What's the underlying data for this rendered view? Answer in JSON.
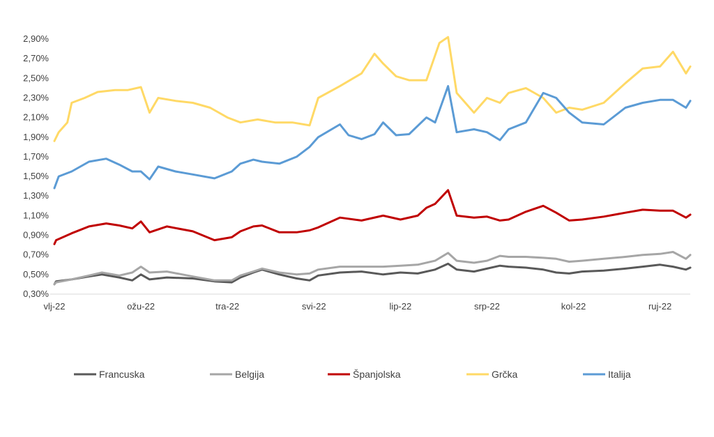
{
  "chart_data": {
    "type": "line",
    "title": "",
    "xlabel": "",
    "ylabel": "",
    "ylim": [
      0.3,
      2.9
    ],
    "y_unit": "%",
    "grid": false,
    "legend_position": "bottom",
    "x_ticks": [
      "vlj-22",
      "ožu-22",
      "tra-22",
      "svi-22",
      "lip-22",
      "srp-22",
      "kol-22",
      "ruj-22"
    ],
    "y_ticks": [
      "0,30%",
      "0,50%",
      "0,70%",
      "0,90%",
      "1,10%",
      "1,30%",
      "1,50%",
      "1,70%",
      "1,90%",
      "2,10%",
      "2,30%",
      "2,50%",
      "2,70%",
      "2,90%"
    ],
    "x": [
      "vlj-22",
      "vlj-22",
      "ožu-22",
      "ožu-22",
      "ožu-22",
      "ožu-22",
      "tra-22",
      "tra-22",
      "tra-22",
      "tra-22",
      "svi-22",
      "svi-22",
      "svi-22",
      "svi-22",
      "lip-22",
      "lip-22",
      "lip-22",
      "lip-22",
      "srp-22",
      "srp-22",
      "srp-22",
      "srp-22",
      "kol-22",
      "kol-22",
      "kol-22",
      "kol-22",
      "ruj-22",
      "ruj-22"
    ],
    "x_index": [
      0,
      0.1,
      0.2,
      0.4,
      0.6,
      0.8,
      1.0,
      1.2,
      1.4,
      1.6,
      1.8,
      2.0,
      2.2,
      2.4,
      2.6,
      2.8,
      3.0,
      3.2,
      3.4,
      3.6,
      3.8,
      4.0,
      4.2,
      4.4,
      4.6,
      4.8,
      5.0,
      5.2
    ],
    "series": [
      {
        "name": "Francuska",
        "color": "#595959",
        "points": [
          [
            0,
            0.4
          ],
          [
            0.02,
            0.43
          ],
          [
            0.2,
            0.45
          ],
          [
            0.4,
            0.48
          ],
          [
            0.55,
            0.5
          ],
          [
            0.75,
            0.47
          ],
          [
            0.9,
            0.44
          ],
          [
            1.0,
            0.5
          ],
          [
            1.1,
            0.45
          ],
          [
            1.3,
            0.47
          ],
          [
            1.6,
            0.46
          ],
          [
            1.85,
            0.43
          ],
          [
            2.05,
            0.42
          ],
          [
            2.15,
            0.47
          ],
          [
            2.3,
            0.52
          ],
          [
            2.4,
            0.55
          ],
          [
            2.6,
            0.5
          ],
          [
            2.8,
            0.46
          ],
          [
            2.95,
            0.44
          ],
          [
            3.05,
            0.49
          ],
          [
            3.3,
            0.52
          ],
          [
            3.55,
            0.53
          ],
          [
            3.8,
            0.5
          ],
          [
            4.0,
            0.52
          ],
          [
            4.2,
            0.51
          ],
          [
            4.4,
            0.55
          ],
          [
            4.55,
            0.61
          ],
          [
            4.65,
            0.55
          ],
          [
            4.85,
            0.53
          ],
          [
            5.0,
            0.56
          ],
          [
            5.15,
            0.59
          ],
          [
            5.25,
            0.58
          ],
          [
            5.45,
            0.57
          ],
          [
            5.65,
            0.55
          ],
          [
            5.8,
            0.52
          ],
          [
            5.95,
            0.51
          ],
          [
            6.1,
            0.53
          ],
          [
            6.35,
            0.54
          ],
          [
            6.6,
            0.56
          ],
          [
            6.8,
            0.58
          ],
          [
            7.0,
            0.6
          ],
          [
            7.15,
            0.58
          ],
          [
            7.3,
            0.55
          ],
          [
            7.35,
            0.57
          ]
        ]
      },
      {
        "name": "Belgija",
        "color": "#a6a6a6",
        "points": [
          [
            0,
            0.4
          ],
          [
            0.02,
            0.42
          ],
          [
            0.2,
            0.45
          ],
          [
            0.4,
            0.49
          ],
          [
            0.55,
            0.52
          ],
          [
            0.75,
            0.49
          ],
          [
            0.9,
            0.52
          ],
          [
            1.0,
            0.58
          ],
          [
            1.1,
            0.52
          ],
          [
            1.3,
            0.53
          ],
          [
            1.6,
            0.48
          ],
          [
            1.85,
            0.44
          ],
          [
            2.05,
            0.44
          ],
          [
            2.15,
            0.49
          ],
          [
            2.3,
            0.53
          ],
          [
            2.4,
            0.56
          ],
          [
            2.6,
            0.52
          ],
          [
            2.8,
            0.5
          ],
          [
            2.95,
            0.51
          ],
          [
            3.05,
            0.55
          ],
          [
            3.3,
            0.58
          ],
          [
            3.55,
            0.58
          ],
          [
            3.8,
            0.58
          ],
          [
            4.0,
            0.59
          ],
          [
            4.2,
            0.6
          ],
          [
            4.4,
            0.64
          ],
          [
            4.55,
            0.72
          ],
          [
            4.65,
            0.64
          ],
          [
            4.85,
            0.62
          ],
          [
            5.0,
            0.64
          ],
          [
            5.15,
            0.69
          ],
          [
            5.25,
            0.68
          ],
          [
            5.45,
            0.68
          ],
          [
            5.65,
            0.67
          ],
          [
            5.8,
            0.66
          ],
          [
            5.95,
            0.63
          ],
          [
            6.1,
            0.64
          ],
          [
            6.35,
            0.66
          ],
          [
            6.6,
            0.68
          ],
          [
            6.8,
            0.7
          ],
          [
            7.0,
            0.71
          ],
          [
            7.15,
            0.73
          ],
          [
            7.3,
            0.66
          ],
          [
            7.35,
            0.7
          ]
        ]
      },
      {
        "name": "Španjolska",
        "color": "#c00000",
        "points": [
          [
            0,
            0.81
          ],
          [
            0.02,
            0.85
          ],
          [
            0.2,
            0.92
          ],
          [
            0.4,
            0.99
          ],
          [
            0.6,
            1.02
          ],
          [
            0.75,
            1.0
          ],
          [
            0.9,
            0.97
          ],
          [
            1.0,
            1.04
          ],
          [
            1.1,
            0.93
          ],
          [
            1.3,
            0.99
          ],
          [
            1.6,
            0.94
          ],
          [
            1.85,
            0.85
          ],
          [
            2.05,
            0.88
          ],
          [
            2.15,
            0.94
          ],
          [
            2.3,
            0.99
          ],
          [
            2.4,
            1.0
          ],
          [
            2.6,
            0.93
          ],
          [
            2.8,
            0.93
          ],
          [
            2.95,
            0.95
          ],
          [
            3.05,
            0.98
          ],
          [
            3.3,
            1.08
          ],
          [
            3.55,
            1.05
          ],
          [
            3.8,
            1.1
          ],
          [
            4.0,
            1.06
          ],
          [
            4.2,
            1.1
          ],
          [
            4.3,
            1.18
          ],
          [
            4.4,
            1.22
          ],
          [
            4.55,
            1.36
          ],
          [
            4.65,
            1.1
          ],
          [
            4.85,
            1.08
          ],
          [
            5.0,
            1.09
          ],
          [
            5.15,
            1.05
          ],
          [
            5.25,
            1.06
          ],
          [
            5.45,
            1.14
          ],
          [
            5.65,
            1.2
          ],
          [
            5.8,
            1.13
          ],
          [
            5.95,
            1.05
          ],
          [
            6.1,
            1.06
          ],
          [
            6.35,
            1.09
          ],
          [
            6.6,
            1.13
          ],
          [
            6.8,
            1.16
          ],
          [
            7.0,
            1.15
          ],
          [
            7.15,
            1.15
          ],
          [
            7.3,
            1.08
          ],
          [
            7.35,
            1.11
          ]
        ]
      },
      {
        "name": "Grčka",
        "color": "#ffd966",
        "points": [
          [
            0,
            1.86
          ],
          [
            0.05,
            1.95
          ],
          [
            0.15,
            2.05
          ],
          [
            0.2,
            2.25
          ],
          [
            0.35,
            2.3
          ],
          [
            0.5,
            2.36
          ],
          [
            0.7,
            2.38
          ],
          [
            0.85,
            2.38
          ],
          [
            1.0,
            2.41
          ],
          [
            1.1,
            2.15
          ],
          [
            1.2,
            2.3
          ],
          [
            1.4,
            2.27
          ],
          [
            1.6,
            2.25
          ],
          [
            1.8,
            2.2
          ],
          [
            2.0,
            2.1
          ],
          [
            2.15,
            2.05
          ],
          [
            2.35,
            2.08
          ],
          [
            2.55,
            2.05
          ],
          [
            2.75,
            2.05
          ],
          [
            2.95,
            2.02
          ],
          [
            3.05,
            2.3
          ],
          [
            3.3,
            2.42
          ],
          [
            3.55,
            2.55
          ],
          [
            3.7,
            2.75
          ],
          [
            3.8,
            2.65
          ],
          [
            3.95,
            2.52
          ],
          [
            4.1,
            2.48
          ],
          [
            4.3,
            2.48
          ],
          [
            4.45,
            2.86
          ],
          [
            4.55,
            2.92
          ],
          [
            4.65,
            2.35
          ],
          [
            4.85,
            2.15
          ],
          [
            5.0,
            2.3
          ],
          [
            5.15,
            2.25
          ],
          [
            5.25,
            2.35
          ],
          [
            5.45,
            2.4
          ],
          [
            5.65,
            2.3
          ],
          [
            5.8,
            2.15
          ],
          [
            5.95,
            2.2
          ],
          [
            6.1,
            2.18
          ],
          [
            6.35,
            2.25
          ],
          [
            6.6,
            2.45
          ],
          [
            6.8,
            2.6
          ],
          [
            7.0,
            2.62
          ],
          [
            7.15,
            2.77
          ],
          [
            7.3,
            2.55
          ],
          [
            7.35,
            2.62
          ]
        ]
      },
      {
        "name": "Italija",
        "color": "#5b9bd5",
        "points": [
          [
            0,
            1.38
          ],
          [
            0.05,
            1.5
          ],
          [
            0.2,
            1.55
          ],
          [
            0.4,
            1.65
          ],
          [
            0.6,
            1.68
          ],
          [
            0.75,
            1.62
          ],
          [
            0.9,
            1.55
          ],
          [
            1.0,
            1.55
          ],
          [
            1.1,
            1.47
          ],
          [
            1.2,
            1.6
          ],
          [
            1.4,
            1.55
          ],
          [
            1.6,
            1.52
          ],
          [
            1.85,
            1.48
          ],
          [
            2.05,
            1.55
          ],
          [
            2.15,
            1.63
          ],
          [
            2.3,
            1.67
          ],
          [
            2.4,
            1.65
          ],
          [
            2.6,
            1.63
          ],
          [
            2.8,
            1.7
          ],
          [
            2.95,
            1.8
          ],
          [
            3.05,
            1.9
          ],
          [
            3.3,
            2.03
          ],
          [
            3.4,
            1.92
          ],
          [
            3.55,
            1.88
          ],
          [
            3.7,
            1.93
          ],
          [
            3.8,
            2.05
          ],
          [
            3.95,
            1.92
          ],
          [
            4.1,
            1.93
          ],
          [
            4.3,
            2.1
          ],
          [
            4.4,
            2.05
          ],
          [
            4.55,
            2.42
          ],
          [
            4.65,
            1.95
          ],
          [
            4.85,
            1.98
          ],
          [
            5.0,
            1.95
          ],
          [
            5.15,
            1.87
          ],
          [
            5.25,
            1.98
          ],
          [
            5.45,
            2.05
          ],
          [
            5.65,
            2.35
          ],
          [
            5.8,
            2.3
          ],
          [
            5.95,
            2.15
          ],
          [
            6.1,
            2.05
          ],
          [
            6.35,
            2.03
          ],
          [
            6.6,
            2.2
          ],
          [
            6.8,
            2.25
          ],
          [
            7.0,
            2.28
          ],
          [
            7.15,
            2.28
          ],
          [
            7.3,
            2.2
          ],
          [
            7.35,
            2.27
          ]
        ]
      }
    ]
  }
}
